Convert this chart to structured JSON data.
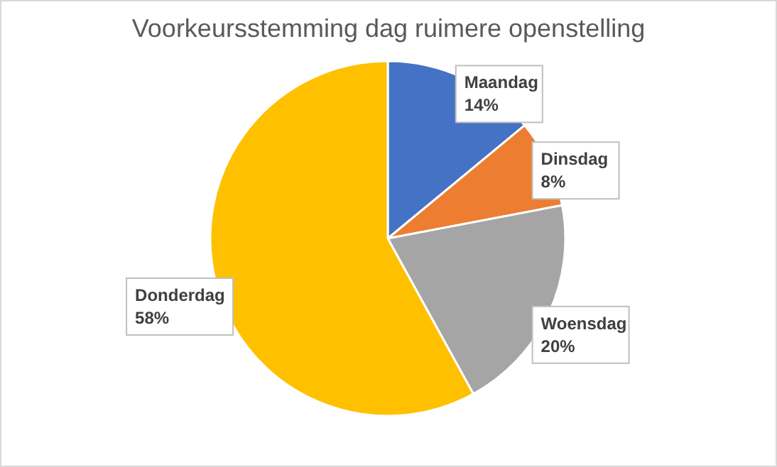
{
  "chart_data": {
    "type": "pie",
    "title": "Voorkeursstemming dag ruimere openstelling",
    "categories": [
      "Maandag",
      "Dinsdag",
      "Woensdag",
      "Donderdag"
    ],
    "values": [
      14,
      8,
      20,
      58
    ],
    "colors": [
      "#4472c4",
      "#ed7d31",
      "#a5a5a5",
      "#ffc000"
    ],
    "value_labels": [
      "14%",
      "8%",
      "20%",
      "58%"
    ]
  }
}
